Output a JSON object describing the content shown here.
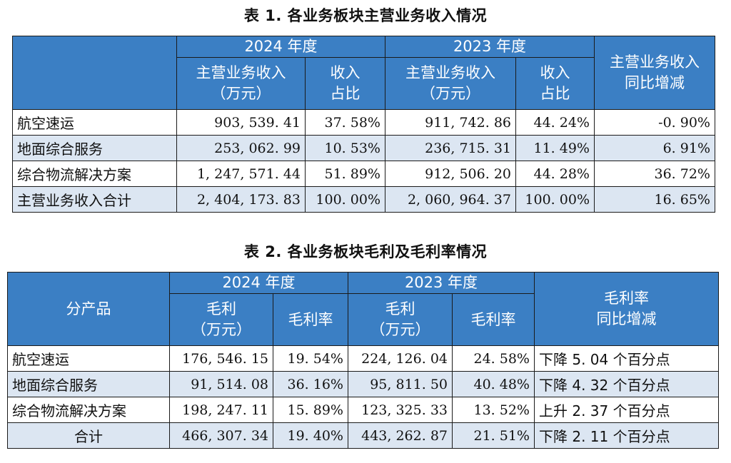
{
  "table1": {
    "caption": "表 1. 各业务板块主营业务收入情况",
    "header": {
      "corner": "",
      "year_2024": "2024 年度",
      "year_2023": "2023 年度",
      "revenue_l1": "主营业务收入",
      "revenue_l2": "（万元）",
      "share_l1": "收入",
      "share_l2": "占比",
      "yoy_l1": "主营业务收入",
      "yoy_l2": "同比增减"
    },
    "rows": [
      {
        "label": "航空速运",
        "rev2024": "903, 539. 41",
        "share2024": "37. 58%",
        "rev2023": "911, 742. 86",
        "share2023": "44. 24%",
        "yoy": "-0. 90%"
      },
      {
        "label": "地面综合服务",
        "rev2024": "253, 062. 99",
        "share2024": "10. 53%",
        "rev2023": "236, 715. 31",
        "share2023": "11. 49%",
        "yoy": "6. 91%"
      },
      {
        "label": "综合物流解决方案",
        "rev2024": "1, 247, 571. 44",
        "share2024": "51. 89%",
        "rev2023": "912, 506. 20",
        "share2023": "44. 28%",
        "yoy": "36. 72%"
      },
      {
        "label": "主营业务收入合计",
        "rev2024": "2, 404, 173. 83",
        "share2024": "100. 00%",
        "rev2023": "2, 060, 964. 37",
        "share2023": "100. 00%",
        "yoy": "16. 65%"
      }
    ]
  },
  "table2": {
    "caption": "表 2. 各业务板块毛利及毛利率情况",
    "header": {
      "corner": "分产品",
      "year_2024": "2024 年度",
      "year_2023": "2023 年度",
      "gp_l1": "毛利",
      "gp_l2": "（万元）",
      "margin": "毛利率",
      "yoy_l1": "毛利率",
      "yoy_l2": "同比增减"
    },
    "rows": [
      {
        "label": "航空速运",
        "gp2024": "176, 546. 15",
        "m2024": "19. 54%",
        "gp2023": "224, 126. 04",
        "m2023": "24. 58%",
        "change": "下降 5. 04 个百分点"
      },
      {
        "label": "地面综合服务",
        "gp2024": "91, 514. 08",
        "m2024": "36. 16%",
        "gp2023": "95, 811. 50",
        "m2023": "40. 48%",
        "change": "下降 4. 32 个百分点"
      },
      {
        "label": "综合物流解决方案",
        "gp2024": "198, 247. 11",
        "m2024": "15. 89%",
        "gp2023": "123, 325. 33",
        "m2023": "13. 52%",
        "change": "上升 2. 37 个百分点"
      },
      {
        "label": "合计",
        "gp2024": "466, 307. 34",
        "m2024": "19. 40%",
        "gp2023": "443, 262. 87",
        "m2023": "21. 51%",
        "change": "下降 2. 11 个百分点"
      }
    ]
  }
}
